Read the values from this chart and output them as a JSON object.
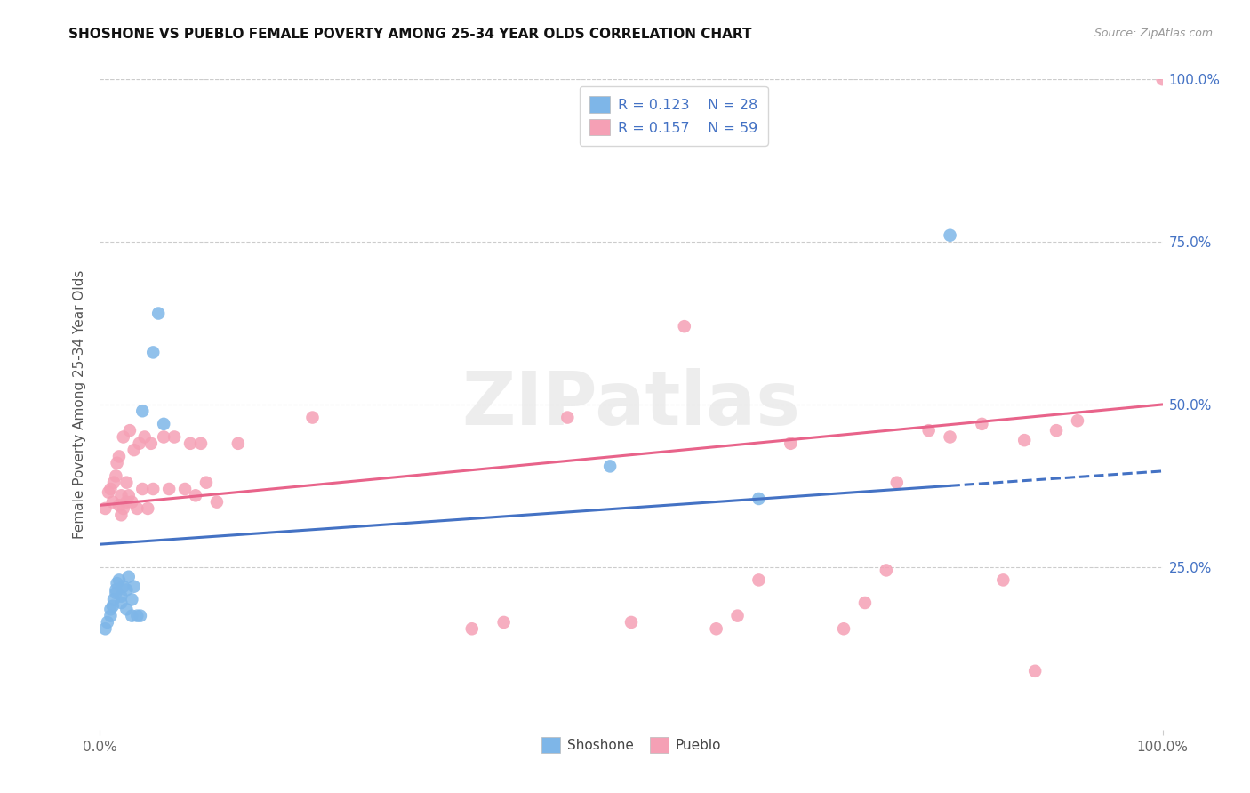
{
  "title": "SHOSHONE VS PUEBLO FEMALE POVERTY AMONG 25-34 YEAR OLDS CORRELATION CHART",
  "source": "Source: ZipAtlas.com",
  "ylabel": "Female Poverty Among 25-34 Year Olds",
  "xlim": [
    0,
    1.0
  ],
  "ylim": [
    0,
    1.0
  ],
  "shoshone_color": "#7EB6E8",
  "pueblo_color": "#F5A0B5",
  "shoshone_R": 0.123,
  "shoshone_N": 28,
  "pueblo_R": 0.157,
  "pueblo_N": 59,
  "watermark_text": "ZIPatlas",
  "shoshone_x": [
    0.005,
    0.007,
    0.01,
    0.01,
    0.012,
    0.013,
    0.015,
    0.015,
    0.016,
    0.018,
    0.02,
    0.02,
    0.022,
    0.025,
    0.025,
    0.027,
    0.03,
    0.03,
    0.032,
    0.035,
    0.038,
    0.04,
    0.05,
    0.055,
    0.06,
    0.48,
    0.62,
    0.8
  ],
  "shoshone_y": [
    0.155,
    0.165,
    0.175,
    0.185,
    0.19,
    0.2,
    0.21,
    0.215,
    0.225,
    0.23,
    0.195,
    0.205,
    0.22,
    0.185,
    0.215,
    0.235,
    0.175,
    0.2,
    0.22,
    0.175,
    0.175,
    0.49,
    0.58,
    0.64,
    0.47,
    0.405,
    0.355,
    0.76
  ],
  "pueblo_x": [
    0.005,
    0.008,
    0.01,
    0.012,
    0.013,
    0.015,
    0.016,
    0.018,
    0.018,
    0.02,
    0.02,
    0.022,
    0.022,
    0.025,
    0.025,
    0.027,
    0.028,
    0.03,
    0.032,
    0.035,
    0.037,
    0.04,
    0.042,
    0.045,
    0.048,
    0.05,
    0.06,
    0.065,
    0.07,
    0.08,
    0.085,
    0.09,
    0.095,
    0.1,
    0.11,
    0.13,
    0.2,
    0.35,
    0.38,
    0.44,
    0.5,
    0.55,
    0.58,
    0.6,
    0.62,
    0.65,
    0.7,
    0.72,
    0.74,
    0.75,
    0.78,
    0.8,
    0.83,
    0.85,
    0.87,
    0.88,
    0.9,
    0.92,
    1.0
  ],
  "pueblo_y": [
    0.34,
    0.365,
    0.37,
    0.35,
    0.38,
    0.39,
    0.41,
    0.345,
    0.42,
    0.33,
    0.36,
    0.34,
    0.45,
    0.35,
    0.38,
    0.36,
    0.46,
    0.35,
    0.43,
    0.34,
    0.44,
    0.37,
    0.45,
    0.34,
    0.44,
    0.37,
    0.45,
    0.37,
    0.45,
    0.37,
    0.44,
    0.36,
    0.44,
    0.38,
    0.35,
    0.44,
    0.48,
    0.155,
    0.165,
    0.48,
    0.165,
    0.62,
    0.155,
    0.175,
    0.23,
    0.44,
    0.155,
    0.195,
    0.245,
    0.38,
    0.46,
    0.45,
    0.47,
    0.23,
    0.445,
    0.09,
    0.46,
    0.475,
    1.0
  ],
  "trend_blue_x0": 0.0,
  "trend_blue_y0": 0.285,
  "trend_blue_x1": 0.8,
  "trend_blue_y1": 0.375,
  "trend_pink_x0": 0.0,
  "trend_pink_y0": 0.345,
  "trend_pink_x1": 1.0,
  "trend_pink_y1": 0.5
}
